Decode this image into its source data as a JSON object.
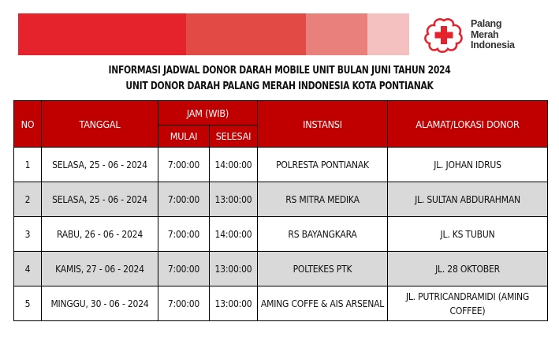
{
  "banner": {
    "colors": [
      "#e5232c",
      "#e24a46",
      "#ea807c",
      "#f4c0c0"
    ]
  },
  "logo": {
    "icon": "red-cross-flower-icon",
    "color": "#e5232c",
    "line1": "Palang",
    "line2": "Merah",
    "line3": "Indonesia"
  },
  "title": {
    "line1": "INFORMASI JADWAL DONOR DARAH MOBILE UNIT BULAN JUNI TAHUN 2024",
    "line2": "UNIT DONOR DARAH PALANG MERAH INDONESIA KOTA PONTIANAK"
  },
  "table": {
    "header_color": "#c00000",
    "headers": {
      "no": "NO",
      "tanggal": "TANGGAL",
      "jam": "JAM (WIB)",
      "mulai": "MULAI",
      "selesai": "SELESAI",
      "instansi": "INSTANSI",
      "alamat": "ALAMAT/LOKASI DONOR"
    },
    "rows": [
      {
        "no": "1",
        "tanggal": "SELASA, 25 - 06 - 2024",
        "mulai": "7:00:00",
        "selesai": "14:00:00",
        "instansi": "POLRESTA PONTIANAK",
        "alamat": "JL. JOHAN IDRUS"
      },
      {
        "no": "2",
        "tanggal": "SELASA, 25 - 06 - 2024",
        "mulai": "7:00:00",
        "selesai": "13:00:00",
        "instansi": "RS MITRA MEDIKA",
        "alamat": "JL. SULTAN ABDURAHMAN"
      },
      {
        "no": "3",
        "tanggal": "RABU, 26 - 06 - 2024",
        "mulai": "7:00:00",
        "selesai": "14:00:00",
        "instansi": "RS BAYANGKARA",
        "alamat": "JL. KS TUBUN"
      },
      {
        "no": "4",
        "tanggal": "KAMIS, 27 - 06 - 2024",
        "mulai": "7:00:00",
        "selesai": "13:00:00",
        "instansi": "POLTEKES PTK",
        "alamat": "JL. 28 OKTOBER"
      },
      {
        "no": "5",
        "tanggal": "MINGGU, 30 - 06 - 2024",
        "mulai": "7:00:00",
        "selesai": "13:00:00",
        "instansi": "AMING COFFE & AIS ARSENAL",
        "alamat": "JL. PUTRICANDRAMIDI (AMING COFFEE)"
      }
    ]
  }
}
